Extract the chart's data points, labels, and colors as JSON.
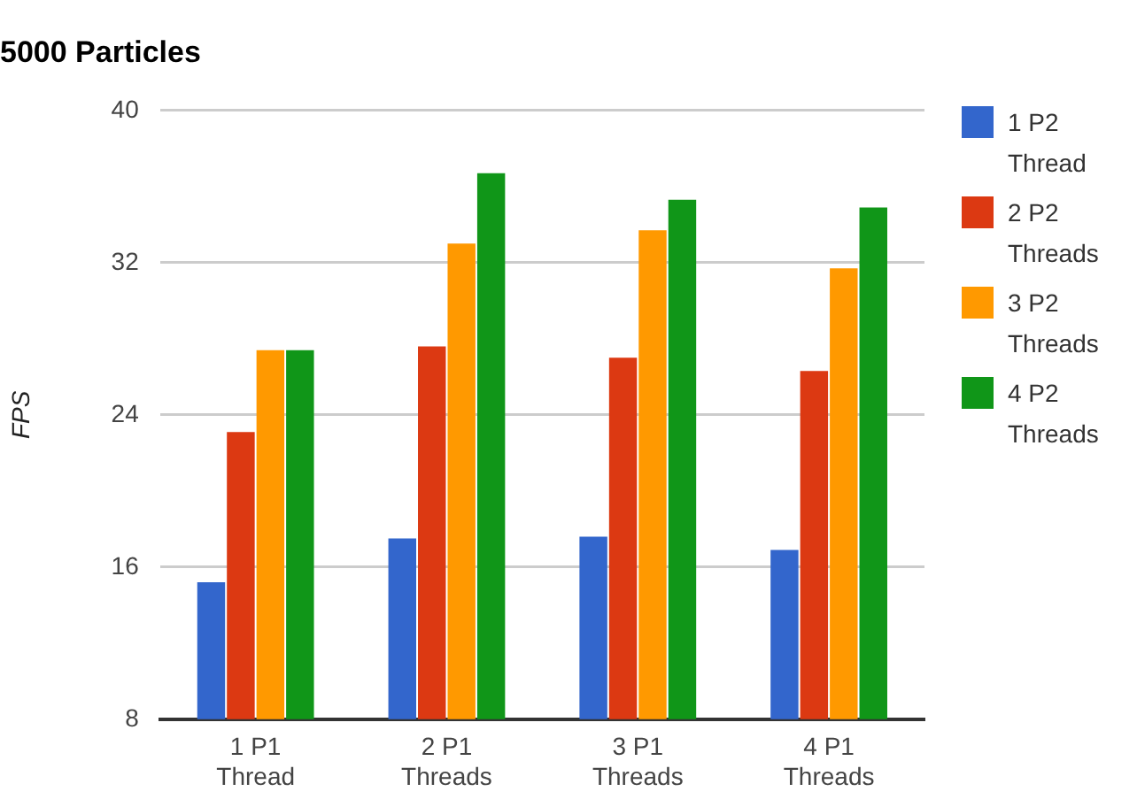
{
  "chart_data": {
    "type": "bar",
    "title": "5000 Particles",
    "ylabel": "FPS",
    "categories": [
      "1 P1 Thread",
      "2 P1 Threads",
      "3 P1 Threads",
      "4 P1 Threads"
    ],
    "series": [
      {
        "name": "1 P2 Thread",
        "color": "#3366cc",
        "values": [
          15.2,
          17.5,
          17.6,
          16.9
        ]
      },
      {
        "name": "2 P2 Threads",
        "color": "#dc3912",
        "values": [
          23.1,
          27.6,
          27.0,
          26.3
        ]
      },
      {
        "name": "3 P2 Threads",
        "color": "#ff9900",
        "values": [
          27.4,
          33.0,
          33.7,
          31.7
        ]
      },
      {
        "name": "4 P2 Threads",
        "color": "#109618",
        "values": [
          27.4,
          36.7,
          35.3,
          34.9
        ]
      }
    ],
    "ylim": [
      8,
      40
    ],
    "yticks": [
      8,
      16,
      24,
      32,
      40
    ],
    "grid": "y",
    "legend": "right"
  }
}
